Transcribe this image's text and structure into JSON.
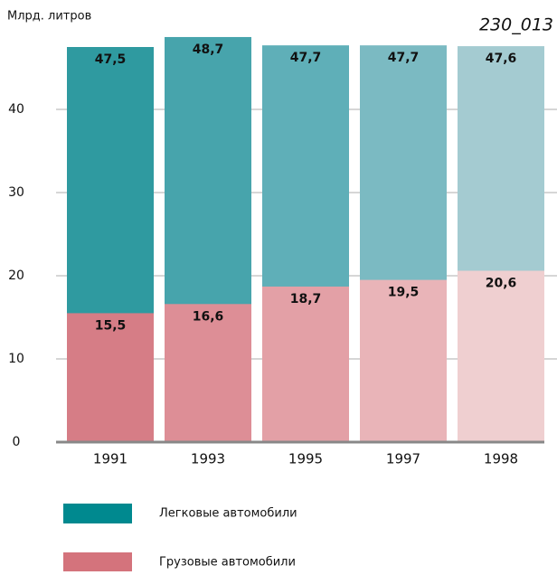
{
  "chart_data": {
    "type": "bar",
    "overlap": true,
    "title": "230_013",
    "ylabel": "Млрд. литров",
    "categories": [
      "1991",
      "1993",
      "1995",
      "1997",
      "1998"
    ],
    "series": [
      {
        "name": "Легковые автомобили",
        "color": "#00898f",
        "colors": [
          "#2f9aa0",
          "#47a4ac",
          "#5fafb8",
          "#7bbac2",
          "#a4cbd1"
        ],
        "values": [
          47.5,
          48.7,
          47.7,
          47.7,
          47.6
        ],
        "value_labels": [
          "47,5",
          "48,7",
          "47,7",
          "47,7",
          "47,6"
        ]
      },
      {
        "name": "Грузовые автомобили",
        "color": "#d4737c",
        "colors": [
          "#d67d86",
          "#dd8e96",
          "#e3a0a6",
          "#e9b4b8",
          "#efcfd0"
        ],
        "values": [
          15.5,
          16.6,
          18.7,
          19.5,
          20.6
        ],
        "value_labels": [
          "15,5",
          "16,6",
          "18,7",
          "19,5",
          "20,6"
        ]
      }
    ],
    "ylim": [
      0,
      50
    ],
    "yticks": [
      0,
      10,
      20,
      30,
      40
    ],
    "grid": true
  }
}
